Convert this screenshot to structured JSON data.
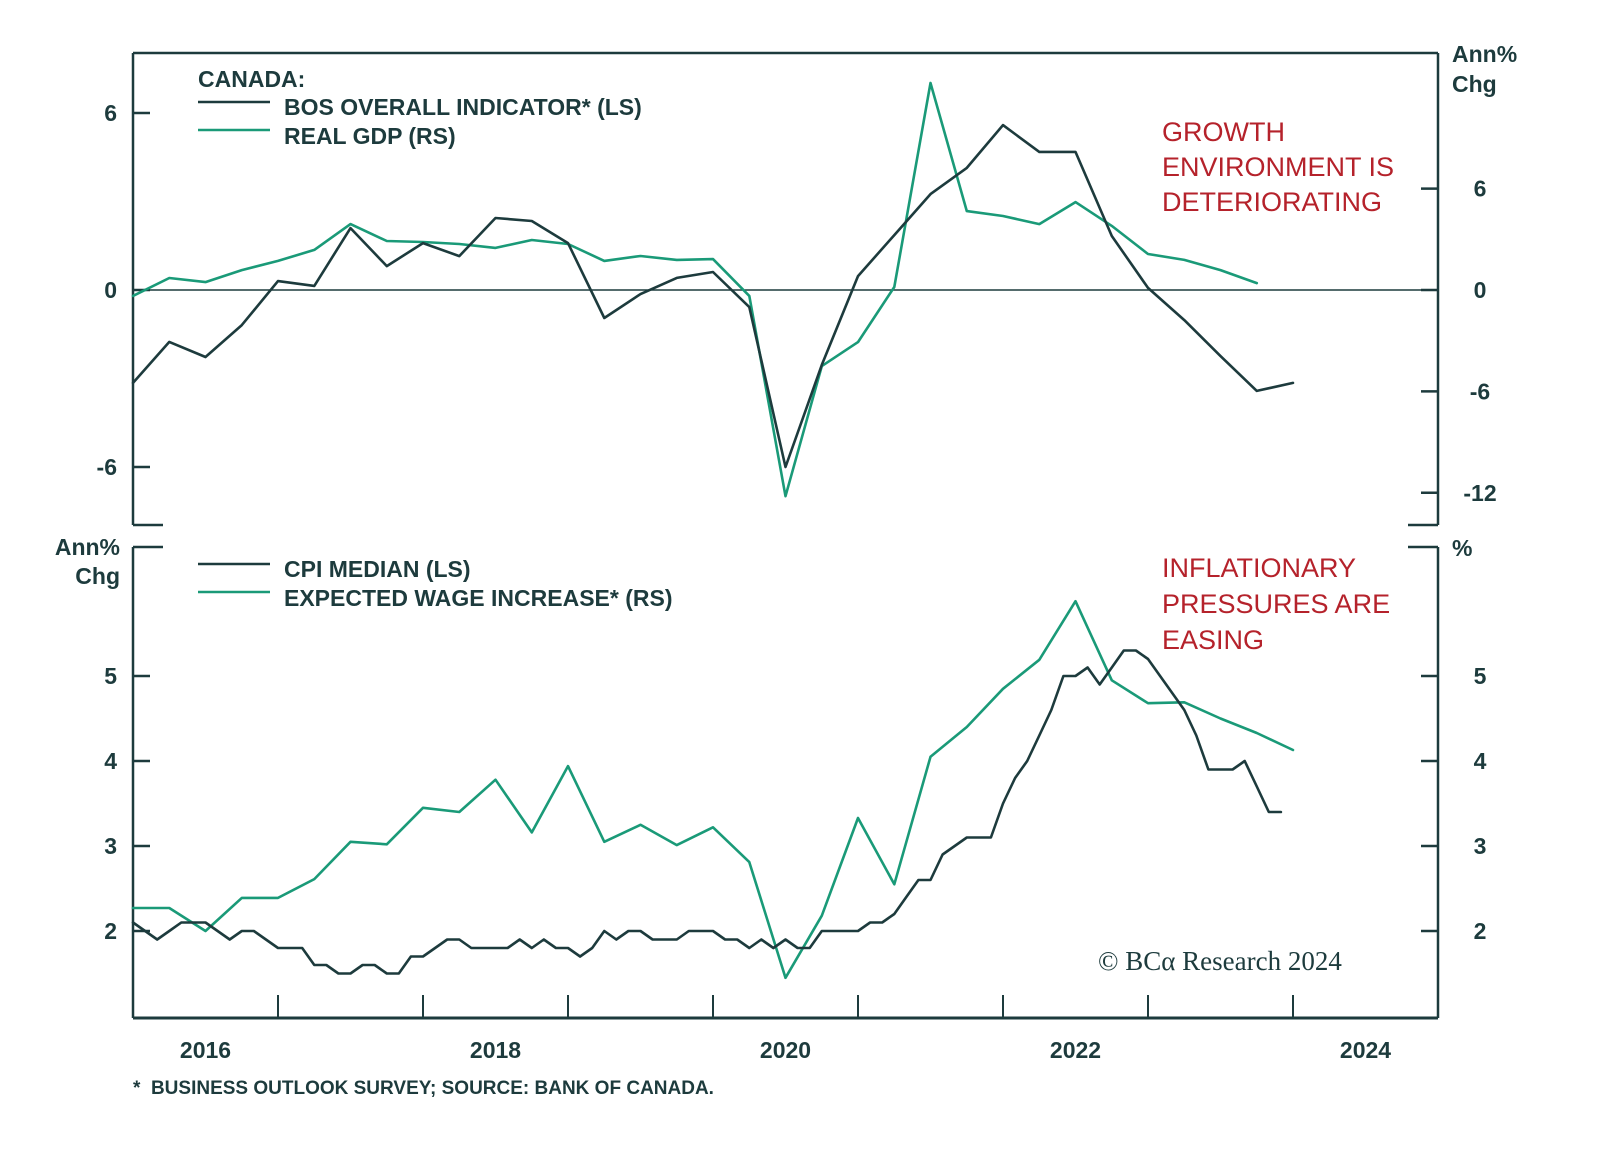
{
  "chart_data": [
    {
      "type": "line",
      "panel": "top",
      "legend_title": "CANADA:",
      "left_axis": {
        "label": "",
        "ticks": [
          6,
          0,
          -6
        ],
        "range": [
          -8,
          8
        ]
      },
      "right_axis": {
        "label_line1": "Ann%",
        "label_line2": "Chg",
        "ticks": [
          6,
          0,
          -6,
          -12
        ],
        "range": [
          -13.9,
          14.2
        ]
      },
      "annotation": [
        "GROWTH",
        "ENVIRONMENT IS",
        "DETERIORATING"
      ],
      "zero_line": true,
      "legend_placement": "top-left",
      "series": [
        {
          "name": "BOS OVERALL INDICATOR* (LS)",
          "axis": "left",
          "color": "#1d3b3d",
          "frequency": "quarterly",
          "start": "2016Q1",
          "values": [
            -3.15,
            -1.76,
            -2.27,
            -1.19,
            0.3,
            0.14,
            2.1,
            0.81,
            1.59,
            1.15,
            2.44,
            2.34,
            1.59,
            -0.95,
            -0.14,
            0.41,
            0.61,
            -0.58,
            -6.0,
            -2.54,
            0.47,
            1.86,
            3.25,
            4.14,
            5.59,
            4.68,
            4.68,
            1.83,
            0.07,
            -1.02,
            -2.24,
            -3.42,
            -3.15
          ]
        },
        {
          "name": "REAL GDP (RS)",
          "axis": "right",
          "color": "#1a9a78",
          "frequency": "quarterly",
          "start": "2016Q1",
          "values": [
            -0.35,
            0.71,
            0.47,
            1.18,
            1.72,
            2.37,
            3.9,
            2.9,
            2.84,
            2.72,
            2.49,
            2.96,
            2.72,
            1.72,
            2.01,
            1.78,
            1.83,
            -0.35,
            -12.2,
            -4.5,
            -3.08,
            0.18,
            12.25,
            4.67,
            4.38,
            3.9,
            5.2,
            3.79,
            2.13,
            1.78,
            1.18,
            0.41
          ]
        }
      ]
    },
    {
      "type": "line",
      "panel": "bottom",
      "left_axis": {
        "label_line1": "Ann%",
        "label_line2": "Chg",
        "ticks": [
          5,
          4,
          3,
          2
        ],
        "range": [
          1.0,
          6.5
        ]
      },
      "right_axis": {
        "label_line1": "%",
        "label_line2": "",
        "ticks": [
          5,
          4,
          3,
          2
        ],
        "range": [
          1.0,
          6.5
        ]
      },
      "annotation": [
        "INFLATIONARY",
        "PRESSURES ARE",
        "EASING"
      ],
      "legend_placement": "top-left",
      "series": [
        {
          "name": "CPI MEDIAN (LS)",
          "axis": "left",
          "color": "#1d3b3d",
          "frequency": "monthly",
          "start": "2016-01",
          "values": [
            2.1,
            2.0,
            1.9,
            2.0,
            2.1,
            2.1,
            2.1,
            2.0,
            1.9,
            2.0,
            2.0,
            1.9,
            1.8,
            1.8,
            1.8,
            1.6,
            1.6,
            1.5,
            1.5,
            1.6,
            1.6,
            1.5,
            1.5,
            1.7,
            1.7,
            1.8,
            1.9,
            1.9,
            1.8,
            1.8,
            1.8,
            1.8,
            1.9,
            1.8,
            1.9,
            1.8,
            1.8,
            1.7,
            1.8,
            2.0,
            1.9,
            2.0,
            2.0,
            1.9,
            1.9,
            1.9,
            2.0,
            2.0,
            2.0,
            1.9,
            1.9,
            1.8,
            1.9,
            1.8,
            1.9,
            1.8,
            1.8,
            2.0,
            2.0,
            2.0,
            2.0,
            2.1,
            2.1,
            2.2,
            2.4,
            2.6,
            2.6,
            2.9,
            3.0,
            3.1,
            3.1,
            3.1,
            3.5,
            3.8,
            4.0,
            4.3,
            4.6,
            5.0,
            5.0,
            5.1,
            4.9,
            5.1,
            5.3,
            5.3,
            5.2,
            5.0,
            4.8,
            4.6,
            4.3,
            3.9,
            3.9,
            3.9,
            4.0,
            3.7,
            3.4,
            3.4
          ]
        },
        {
          "name": "EXPECTED WAGE INCREASE* (RS)",
          "axis": "right",
          "color": "#1a9a78",
          "frequency": "quarterly",
          "start": "2016Q1",
          "values": [
            2.27,
            2.27,
            2.0,
            2.39,
            2.39,
            2.61,
            3.05,
            3.02,
            3.45,
            3.4,
            3.78,
            3.16,
            3.94,
            3.05,
            3.25,
            3.01,
            3.22,
            2.81,
            1.45,
            2.18,
            3.33,
            2.55,
            4.05,
            4.4,
            4.85,
            5.19,
            5.88,
            4.95,
            4.68,
            4.69,
            4.5,
            4.33,
            4.13
          ]
        }
      ]
    }
  ],
  "x_axis": {
    "range": [
      "2016-01",
      "2024-12"
    ],
    "tick_labels": [
      "2016",
      "2018",
      "2020",
      "2022",
      "2024"
    ]
  },
  "footnote": "*  BUSINESS OUTLOOK SURVEY; SOURCE: BANK OF CANADA.",
  "credit": "© BCα Research 2024",
  "colors": {
    "dark": "#1d3b3d",
    "green": "#1a9a78",
    "annotation": "#b5222b"
  }
}
